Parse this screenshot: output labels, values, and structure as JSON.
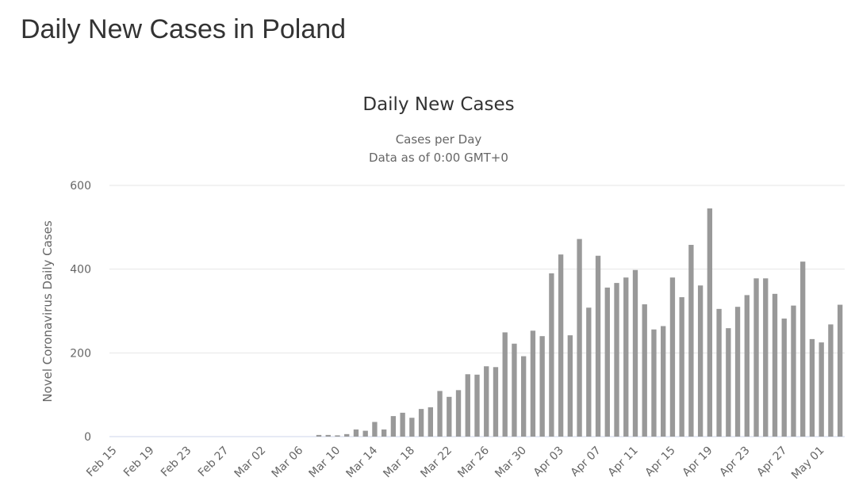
{
  "page_title": "Daily New Cases in Poland",
  "chart_data": {
    "type": "bar",
    "title": "Daily New Cases",
    "subtitle": [
      "Cases per Day",
      "Data as of 0:00 GMT+0"
    ],
    "y_label": "Novel Coronavirus Daily Cases",
    "color": "#999999",
    "grid": true,
    "ylim": [
      0,
      600
    ],
    "yticks": [
      0,
      200,
      400,
      600
    ],
    "categories": [
      "Feb 15",
      null,
      null,
      null,
      "Feb 19",
      null,
      null,
      null,
      "Feb 23",
      null,
      null,
      null,
      "Feb 27",
      null,
      null,
      null,
      "Mar 02",
      null,
      null,
      null,
      "Mar 06",
      null,
      null,
      null,
      "Mar 10",
      null,
      null,
      null,
      "Mar 14",
      null,
      null,
      null,
      "Mar 18",
      null,
      null,
      null,
      "Mar 22",
      null,
      null,
      null,
      "Mar 26",
      null,
      null,
      null,
      "Mar 30",
      null,
      null,
      null,
      "Apr 03",
      null,
      null,
      null,
      "Apr 07",
      null,
      null,
      null,
      "Apr 11",
      null,
      null,
      null,
      "Apr 15",
      null,
      null,
      null,
      "Apr 19",
      null,
      null,
      null,
      "Apr 23",
      null,
      null,
      null,
      "Apr 27",
      null,
      null,
      null,
      "May 01",
      null,
      null
    ],
    "values": [
      0,
      0,
      0,
      0,
      0,
      0,
      0,
      0,
      0,
      0,
      0,
      0,
      0,
      0,
      0,
      0,
      0,
      0,
      0,
      0,
      0,
      0,
      4,
      4,
      3,
      6,
      17,
      14,
      35,
      17,
      49,
      57,
      45,
      66,
      70,
      109,
      95,
      111,
      149,
      148,
      168,
      166,
      249,
      222,
      192,
      253,
      240,
      390,
      435,
      242,
      472,
      308,
      432,
      356,
      367,
      380,
      398,
      316,
      256,
      264,
      380,
      333,
      458,
      361,
      545,
      305,
      259,
      310,
      338,
      378,
      378,
      341,
      282,
      313,
      418,
      233,
      225,
      268,
      315
    ]
  }
}
